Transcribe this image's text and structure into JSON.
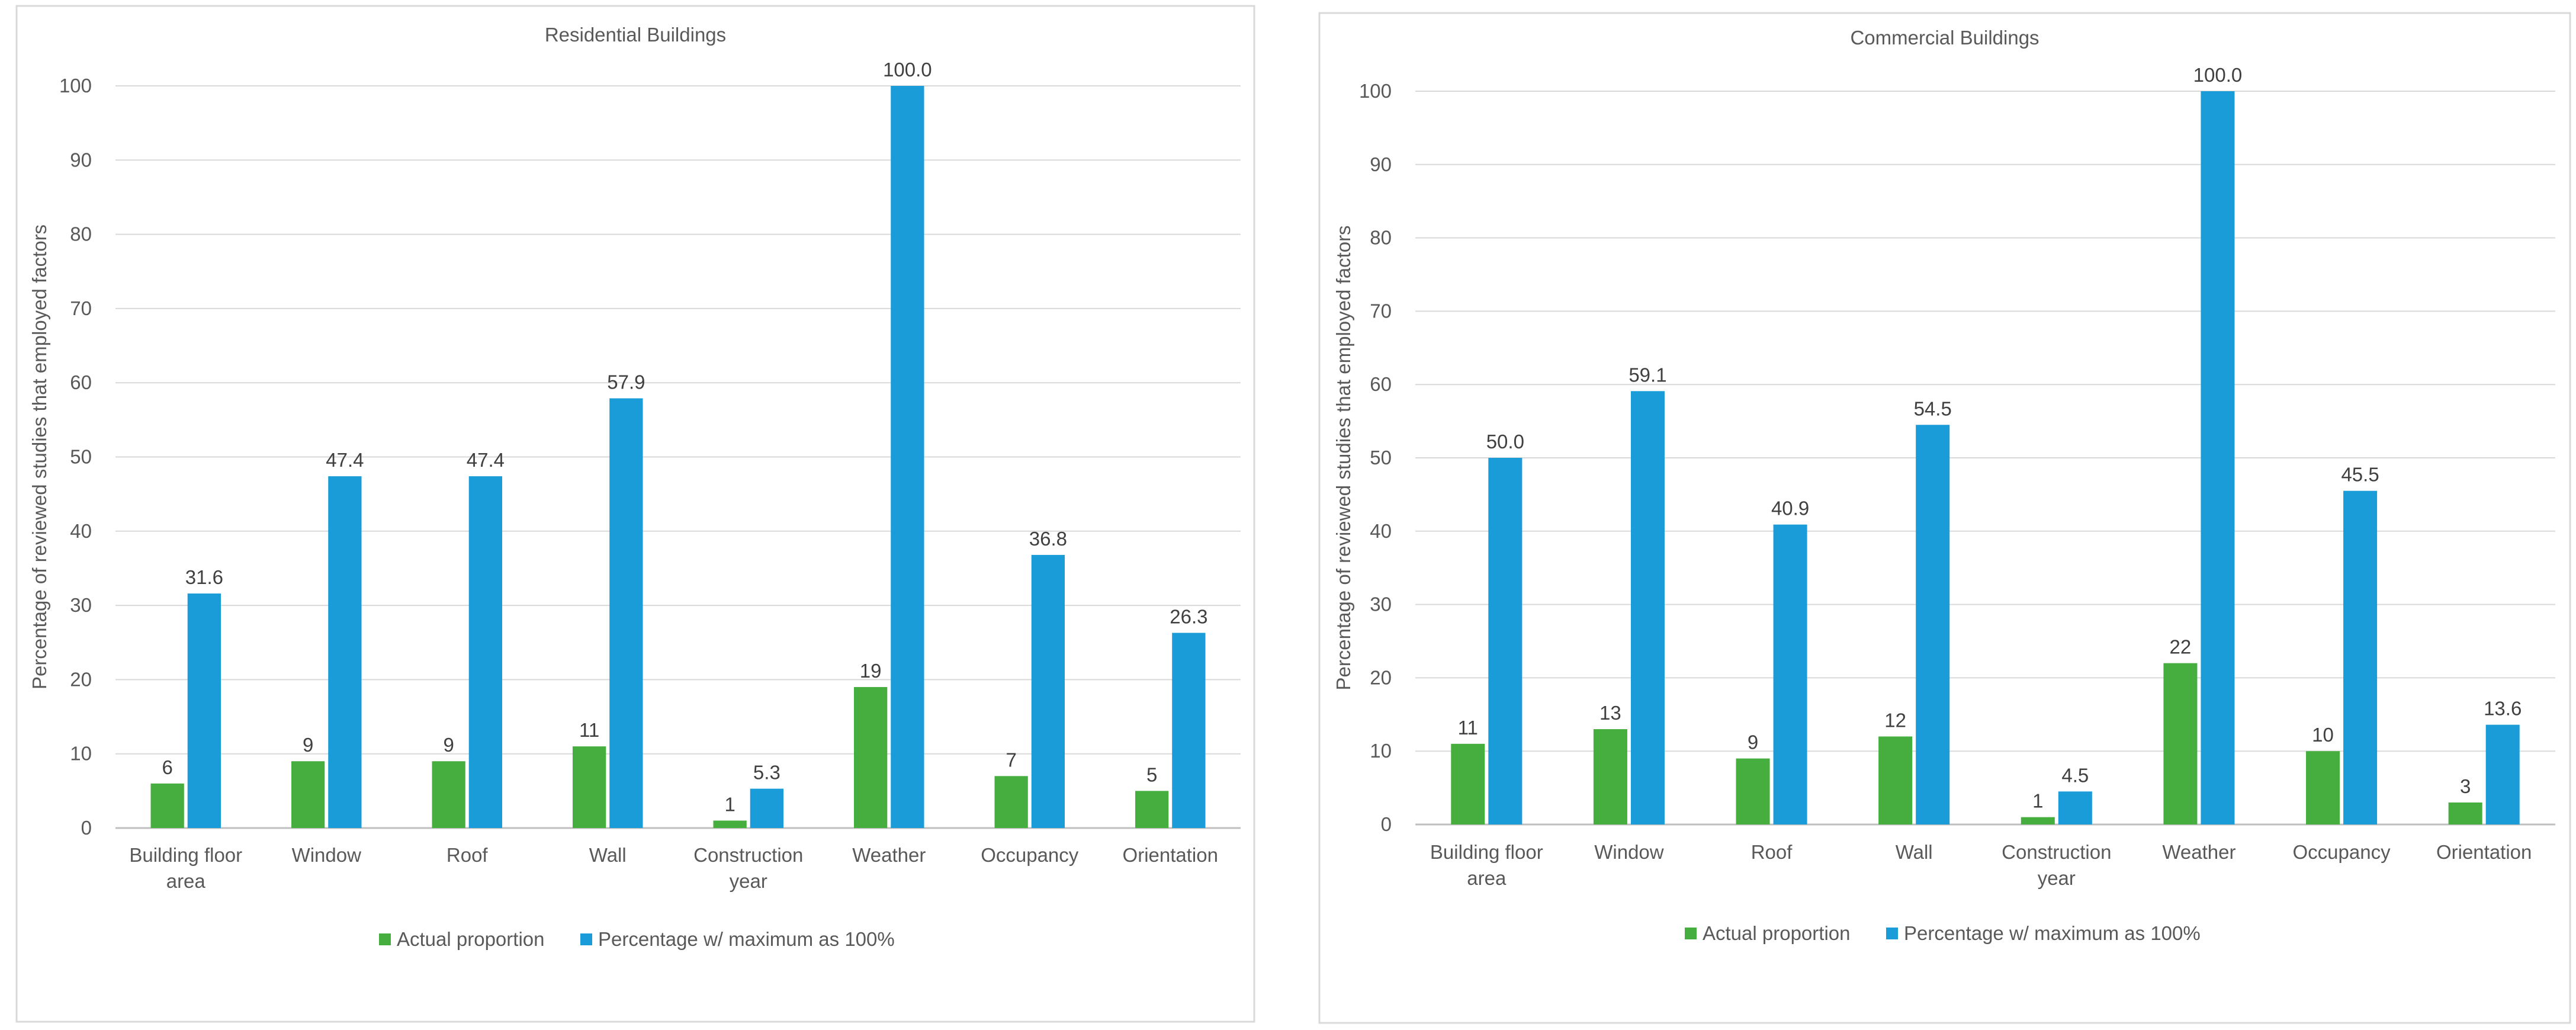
{
  "colors": {
    "actual": "#45ae3e",
    "percentage": "#1a9cd8"
  },
  "chart_data": [
    {
      "type": "bar",
      "title": "Residential Buildings",
      "xlabel": "",
      "ylabel": "Percentage of reviewed studies that employed factors",
      "ylim": [
        0,
        100
      ],
      "yticks": [
        0,
        10,
        20,
        30,
        40,
        50,
        60,
        70,
        80,
        90,
        100
      ],
      "categories": [
        [
          "Building floor",
          "area"
        ],
        [
          "Window"
        ],
        [
          "Roof"
        ],
        [
          "Wall"
        ],
        [
          "Construction",
          "year"
        ],
        [
          "Weather"
        ],
        [
          "Occupancy"
        ],
        [
          "Orientation"
        ]
      ],
      "series": [
        {
          "name": "Actual proportion",
          "values": [
            6,
            9,
            9,
            11,
            1,
            19,
            7,
            5
          ],
          "labels": [
            "6",
            "9",
            "9",
            "11",
            "1",
            "19",
            "7",
            "5"
          ]
        },
        {
          "name": "Percentage w/ maximum as 100%",
          "values": [
            31.6,
            47.4,
            47.4,
            57.9,
            5.3,
            100.0,
            36.8,
            26.3
          ],
          "labels": [
            "31.6",
            "47.4",
            "47.4",
            "57.9",
            "5.3",
            "100.0",
            "36.8",
            "26.3"
          ]
        }
      ],
      "legend": "bottom",
      "grid": true
    },
    {
      "type": "bar",
      "title": "Commercial Buildings",
      "xlabel": "",
      "ylabel": "Percentage of reviewed studies that employed factors",
      "ylim": [
        0,
        100
      ],
      "yticks": [
        0,
        10,
        20,
        30,
        40,
        50,
        60,
        70,
        80,
        90,
        100
      ],
      "categories": [
        [
          "Building floor",
          "area"
        ],
        [
          "Window"
        ],
        [
          "Roof"
        ],
        [
          "Wall"
        ],
        [
          "Construction",
          "year"
        ],
        [
          "Weather"
        ],
        [
          "Occupancy"
        ],
        [
          "Orientation"
        ]
      ],
      "series": [
        {
          "name": "Actual proportion",
          "values": [
            11,
            13,
            9,
            12,
            1,
            22,
            10,
            3
          ],
          "labels": [
            "11",
            "13",
            "9",
            "12",
            "1",
            "22",
            "10",
            "3"
          ]
        },
        {
          "name": "Percentage w/ maximum as 100%",
          "values": [
            50.0,
            59.1,
            40.9,
            54.5,
            4.5,
            100.0,
            45.5,
            13.6
          ],
          "labels": [
            "50.0",
            "59.1",
            "40.9",
            "54.5",
            "4.5",
            "100.0",
            "45.5",
            "13.6"
          ]
        }
      ],
      "legend": "bottom",
      "grid": true
    }
  ]
}
